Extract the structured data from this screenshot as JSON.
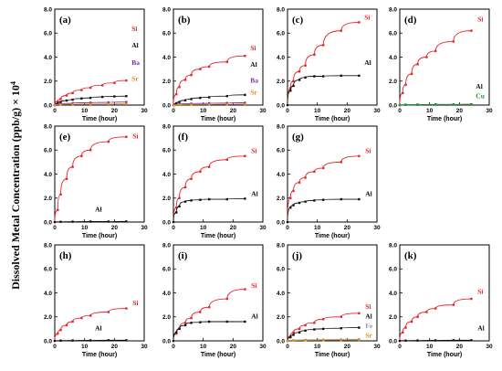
{
  "figure": {
    "ylabel": "Dissolved Metal Concentration (ppb/g) × 10",
    "ylabel_sup": "4"
  },
  "colors": {
    "Si": "#e8262b",
    "Al": "#111111",
    "Ba": "#7a2fa0",
    "Sr": "#e08a1e",
    "Cu": "#1f9a38",
    "Fe": "#9a9a9a"
  },
  "chart_data": [
    {
      "type": "line",
      "panel_label": "(a)",
      "xlabel": "Time (hour)",
      "xlim": [
        0,
        30
      ],
      "ylim": [
        0,
        8
      ],
      "xticks": [
        "0",
        "10",
        "20",
        "30"
      ],
      "yticks": [
        "0.0",
        "2.0",
        "4.0",
        "6.0",
        "8.0"
      ],
      "series": [
        {
          "name": "Si",
          "x": [
            0,
            1,
            2,
            4,
            6,
            9,
            12,
            16,
            20,
            24
          ],
          "y": [
            0,
            0.3,
            0.5,
            0.8,
            1.0,
            1.25,
            1.45,
            1.65,
            1.85,
            2.05
          ]
        },
        {
          "name": "Al",
          "x": [
            0,
            1,
            2,
            4,
            6,
            9,
            12,
            16,
            20,
            24
          ],
          "y": [
            0,
            0.15,
            0.25,
            0.38,
            0.45,
            0.55,
            0.6,
            0.68,
            0.72,
            0.75
          ]
        },
        {
          "name": "Ba",
          "x": [
            0,
            2,
            6,
            12,
            18,
            24
          ],
          "y": [
            0,
            0.1,
            0.15,
            0.2,
            0.22,
            0.25
          ]
        },
        {
          "name": "Sr",
          "x": [
            0,
            2,
            6,
            12,
            18,
            24
          ],
          "y": [
            0,
            0.05,
            0.07,
            0.08,
            0.09,
            0.1
          ]
        }
      ]
    },
    {
      "type": "line",
      "panel_label": "(b)",
      "xlabel": "Time (hour)",
      "xlim": [
        0,
        30
      ],
      "ylim": [
        0,
        8
      ],
      "xticks": [
        "0",
        "10",
        "20",
        "30"
      ],
      "yticks": [
        "0.0",
        "2.0",
        "4.0",
        "6.0",
        "8.0"
      ],
      "series": [
        {
          "name": "Si",
          "x": [
            0,
            1,
            2,
            4,
            6,
            9,
            12,
            18,
            24
          ],
          "y": [
            0,
            0.9,
            1.5,
            2.1,
            2.5,
            3.0,
            3.2,
            3.6,
            4.1
          ]
        },
        {
          "name": "Al",
          "x": [
            0,
            1,
            2,
            4,
            6,
            9,
            12,
            18,
            24
          ],
          "y": [
            0,
            0.15,
            0.25,
            0.4,
            0.5,
            0.6,
            0.65,
            0.75,
            0.85
          ]
        },
        {
          "name": "Ba",
          "x": [
            0,
            2,
            6,
            12,
            18,
            24
          ],
          "y": [
            0,
            0.08,
            0.12,
            0.15,
            0.17,
            0.19
          ]
        },
        {
          "name": "Sr",
          "x": [
            0,
            2,
            6,
            12,
            18,
            24
          ],
          "y": [
            0,
            0.03,
            0.05,
            0.06,
            0.07,
            0.08
          ]
        }
      ]
    },
    {
      "type": "line",
      "panel_label": "(c)",
      "xlabel": "Time (hour)",
      "xlim": [
        0,
        30
      ],
      "ylim": [
        0,
        8
      ],
      "xticks": [
        "0",
        "10",
        "20",
        "30"
      ],
      "yticks": [
        "0.0",
        "2.0",
        "4.0",
        "6.0",
        "8.0"
      ],
      "series": [
        {
          "name": "Si",
          "x": [
            0,
            1,
            2,
            4,
            6,
            9,
            12,
            18,
            24
          ],
          "y": [
            0,
            1.4,
            2.0,
            2.8,
            3.3,
            4.2,
            5.0,
            6.2,
            6.9
          ]
        },
        {
          "name": "Al",
          "x": [
            0,
            1,
            2,
            4,
            6,
            9,
            12,
            18,
            24
          ],
          "y": [
            0,
            1.2,
            1.6,
            2.1,
            2.3,
            2.4,
            2.4,
            2.45,
            2.45
          ]
        }
      ]
    },
    {
      "type": "line",
      "panel_label": "(d)",
      "xlabel": "Time (hour)",
      "xlim": [
        0,
        30
      ],
      "ylim": [
        0,
        8
      ],
      "xticks": [
        "0",
        "10",
        "20",
        "30"
      ],
      "yticks": [
        "0.0",
        "2.0",
        "4.0",
        "6.0",
        "8.0"
      ],
      "series": [
        {
          "name": "Si",
          "x": [
            0,
            1,
            2,
            4,
            6,
            9,
            12,
            18,
            24
          ],
          "y": [
            0,
            1.0,
            1.7,
            2.6,
            3.4,
            4.0,
            4.5,
            5.3,
            6.2
          ]
        },
        {
          "name": "Al",
          "x": [
            0,
            2,
            6,
            12,
            18,
            24
          ],
          "y": [
            0,
            0.03,
            0.04,
            0.05,
            0.05,
            0.06
          ]
        },
        {
          "name": "Cu",
          "x": [
            0,
            2,
            6,
            12,
            18,
            24
          ],
          "y": [
            0,
            0.02,
            0.02,
            0.03,
            0.03,
            0.03
          ]
        }
      ]
    },
    {
      "type": "line",
      "panel_label": "(e)",
      "xlabel": "Time (hour)",
      "xlim": [
        0,
        30
      ],
      "ylim": [
        0,
        8
      ],
      "xticks": [
        "0",
        "10",
        "20",
        "30"
      ],
      "yticks": [
        "0.0",
        "2.0",
        "4.0",
        "6.0",
        "8.0"
      ],
      "series": [
        {
          "name": "Si",
          "x": [
            0,
            1,
            2,
            4,
            6,
            9,
            12,
            18,
            24
          ],
          "y": [
            0,
            1.0,
            2.3,
            3.6,
            4.6,
            5.5,
            6.0,
            6.7,
            7.1
          ]
        },
        {
          "name": "Al",
          "x": [
            0,
            2,
            6,
            12,
            18,
            24
          ],
          "y": [
            0,
            0.02,
            0.03,
            0.04,
            0.04,
            0.05
          ]
        }
      ]
    },
    {
      "type": "line",
      "panel_label": "(f)",
      "xlabel": "Time (hour)",
      "xlim": [
        0,
        30
      ],
      "ylim": [
        0,
        8
      ],
      "xticks": [
        "0",
        "10",
        "20",
        "30"
      ],
      "yticks": [
        "0.0",
        "2.0",
        "4.0",
        "6.0",
        "8.0"
      ],
      "series": [
        {
          "name": "Si",
          "x": [
            0,
            1,
            2,
            4,
            6,
            9,
            12,
            18,
            24
          ],
          "y": [
            0,
            1.2,
            2.0,
            2.9,
            3.6,
            4.2,
            4.6,
            5.2,
            5.5
          ]
        },
        {
          "name": "Al",
          "x": [
            0,
            1,
            2,
            4,
            6,
            9,
            12,
            18,
            24
          ],
          "y": [
            0,
            0.8,
            1.3,
            1.7,
            1.8,
            1.85,
            1.9,
            1.9,
            1.95
          ]
        }
      ]
    },
    {
      "type": "line",
      "panel_label": "(g)",
      "xlabel": "Time (hour)",
      "xlim": [
        0,
        30
      ],
      "ylim": [
        0,
        8
      ],
      "xticks": [
        "0",
        "10",
        "20",
        "30"
      ],
      "yticks": [
        "0.0",
        "2.0",
        "4.0",
        "6.0",
        "8.0"
      ],
      "series": [
        {
          "name": "Si",
          "x": [
            0,
            1,
            2,
            4,
            6,
            9,
            12,
            18,
            24
          ],
          "y": [
            0,
            2.0,
            2.6,
            3.3,
            3.7,
            4.2,
            4.5,
            5.0,
            5.5
          ]
        },
        {
          "name": "Al",
          "x": [
            0,
            1,
            2,
            4,
            6,
            9,
            12,
            18,
            24
          ],
          "y": [
            0,
            1.2,
            1.4,
            1.6,
            1.7,
            1.8,
            1.85,
            1.9,
            1.9
          ]
        }
      ]
    },
    {
      "type": "line",
      "panel_label": "(h)",
      "xlabel": "Time (hour)",
      "xlim": [
        0,
        30
      ],
      "ylim": [
        0,
        8
      ],
      "xticks": [
        "0",
        "10",
        "20",
        "30"
      ],
      "yticks": [
        "0.0",
        "2.0",
        "4.0",
        "6.0",
        "8.0"
      ],
      "series": [
        {
          "name": "Si",
          "x": [
            0,
            1,
            2,
            4,
            6,
            9,
            12,
            18,
            24
          ],
          "y": [
            0,
            0.6,
            0.9,
            1.3,
            1.6,
            1.9,
            2.1,
            2.4,
            2.7
          ]
        },
        {
          "name": "Al",
          "x": [
            0,
            2,
            6,
            12,
            18,
            24
          ],
          "y": [
            0,
            0.02,
            0.03,
            0.04,
            0.05,
            0.05
          ]
        }
      ]
    },
    {
      "type": "line",
      "panel_label": "(i)",
      "xlabel": "Time (hour)",
      "xlim": [
        0,
        30
      ],
      "ylim": [
        0,
        8
      ],
      "xticks": [
        "0",
        "10",
        "20",
        "30"
      ],
      "yticks": [
        "0.0",
        "2.0",
        "4.0",
        "6.0",
        "8.0"
      ],
      "series": [
        {
          "name": "Si",
          "x": [
            0,
            1,
            2,
            4,
            6,
            9,
            12,
            18,
            24
          ],
          "y": [
            0,
            0.6,
            1.0,
            1.5,
            1.9,
            2.4,
            2.8,
            3.5,
            4.3
          ]
        },
        {
          "name": "Al",
          "x": [
            0,
            1,
            2,
            4,
            6,
            9,
            12,
            18,
            24
          ],
          "y": [
            0,
            0.7,
            1.0,
            1.3,
            1.5,
            1.55,
            1.6,
            1.6,
            1.6
          ]
        }
      ]
    },
    {
      "type": "line",
      "panel_label": "(j)",
      "xlabel": "Time (hour)",
      "xlim": [
        0,
        30
      ],
      "ylim": [
        0,
        8
      ],
      "xticks": [
        "0",
        "10",
        "20",
        "30"
      ],
      "yticks": [
        "0.0",
        "2.0",
        "4.0",
        "6.0",
        "8.0"
      ],
      "series": [
        {
          "name": "Si",
          "x": [
            0,
            1,
            2,
            4,
            6,
            9,
            12,
            18,
            24
          ],
          "y": [
            0,
            0.4,
            0.7,
            1.0,
            1.3,
            1.5,
            1.8,
            2.0,
            2.3
          ]
        },
        {
          "name": "Al",
          "x": [
            0,
            1,
            2,
            4,
            6,
            9,
            12,
            18,
            24
          ],
          "y": [
            0,
            0.3,
            0.5,
            0.7,
            0.85,
            0.95,
            1.0,
            1.05,
            1.1
          ]
        },
        {
          "name": "Fe",
          "x": [
            0,
            2,
            6,
            12,
            18,
            24
          ],
          "y": [
            0,
            0.05,
            0.08,
            0.1,
            0.12,
            0.13
          ]
        },
        {
          "name": "Sr",
          "x": [
            0,
            2,
            6,
            12,
            18,
            24
          ],
          "y": [
            0,
            0.03,
            0.05,
            0.06,
            0.07,
            0.08
          ]
        }
      ]
    },
    {
      "type": "line",
      "panel_label": "(k)",
      "xlabel": "Time (hour)",
      "xlim": [
        0,
        30
      ],
      "ylim": [
        0,
        8
      ],
      "xticks": [
        "0",
        "10",
        "20",
        "30"
      ],
      "yticks": [
        "0.0",
        "2.0",
        "4.0",
        "6.0",
        "8.0"
      ],
      "series": [
        {
          "name": "Si",
          "x": [
            0,
            1,
            2,
            4,
            6,
            9,
            12,
            18,
            24
          ],
          "y": [
            0,
            0.7,
            1.1,
            1.6,
            2.0,
            2.4,
            2.7,
            3.0,
            3.5
          ]
        },
        {
          "name": "Al",
          "x": [
            0,
            2,
            6,
            12,
            18,
            24
          ],
          "y": [
            0,
            0.02,
            0.03,
            0.04,
            0.05,
            0.05
          ]
        }
      ]
    }
  ]
}
